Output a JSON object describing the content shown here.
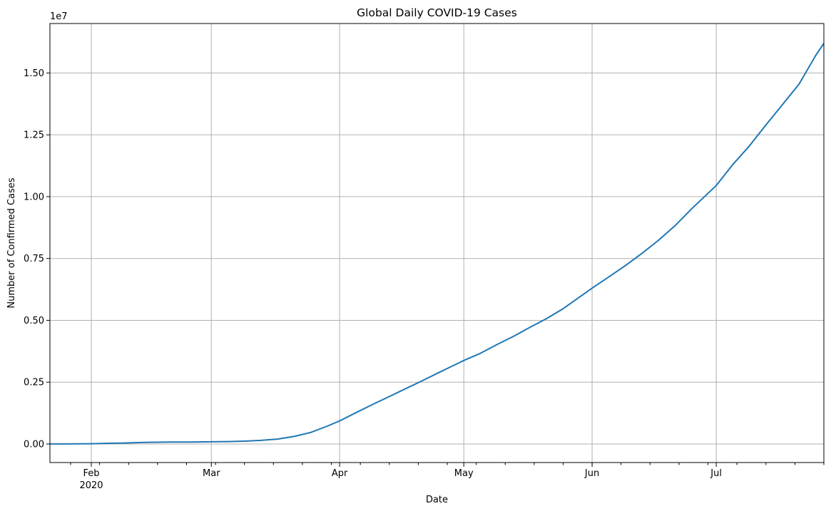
{
  "chart_data": {
    "type": "line",
    "title": "Global Daily COVID-19 Cases",
    "xlabel": "Date",
    "ylabel": "Number of Confirmed Cases",
    "y_offset_label": "1e7",
    "y_multiplier": 10000000,
    "ylim": [
      -0.075,
      1.7
    ],
    "xlim": [
      "2020-01-22",
      "2020-07-27"
    ],
    "grid": true,
    "line_color": "#1f77b4",
    "x_ticks": [
      {
        "date": "2020-02-01",
        "label": "Feb",
        "sublabel": "2020"
      },
      {
        "date": "2020-03-01",
        "label": "Mar",
        "sublabel": ""
      },
      {
        "date": "2020-04-01",
        "label": "Apr",
        "sublabel": ""
      },
      {
        "date": "2020-05-01",
        "label": "May",
        "sublabel": ""
      },
      {
        "date": "2020-06-01",
        "label": "Jun",
        "sublabel": ""
      },
      {
        "date": "2020-07-01",
        "label": "Jul",
        "sublabel": ""
      }
    ],
    "y_ticks": [
      {
        "value": 0.0,
        "label": "0.00"
      },
      {
        "value": 0.25,
        "label": "0.25"
      },
      {
        "value": 0.5,
        "label": "0.50"
      },
      {
        "value": 0.75,
        "label": "0.75"
      },
      {
        "value": 1.0,
        "label": "1.00"
      },
      {
        "value": 1.25,
        "label": "1.25"
      },
      {
        "value": 1.5,
        "label": "1.50"
      }
    ],
    "series": [
      {
        "points": [
          [
            "2020-01-22",
            0.0001
          ],
          [
            "2020-01-26",
            0.0002
          ],
          [
            "2020-02-01",
            0.0012
          ],
          [
            "2020-02-05",
            0.0028
          ],
          [
            "2020-02-09",
            0.004
          ],
          [
            "2020-02-13",
            0.006
          ],
          [
            "2020-02-15",
            0.0069
          ],
          [
            "2020-02-20",
            0.0076
          ],
          [
            "2020-02-25",
            0.0081
          ],
          [
            "2020-03-01",
            0.0088
          ],
          [
            "2020-03-05",
            0.0098
          ],
          [
            "2020-03-09",
            0.0114
          ],
          [
            "2020-03-13",
            0.0145
          ],
          [
            "2020-03-17",
            0.0198
          ],
          [
            "2020-03-21",
            0.0305
          ],
          [
            "2020-03-25",
            0.0467
          ],
          [
            "2020-03-29",
            0.0721
          ],
          [
            "2020-04-01",
            0.0932
          ],
          [
            "2020-04-05",
            0.1272
          ],
          [
            "2020-04-09",
            0.1602
          ],
          [
            "2020-04-13",
            0.1919
          ],
          [
            "2020-04-17",
            0.224
          ],
          [
            "2020-04-21",
            0.256
          ],
          [
            "2020-04-25",
            0.289
          ],
          [
            "2020-05-01",
            0.3375
          ],
          [
            "2020-05-05",
            0.3665
          ],
          [
            "2020-05-09",
            0.402
          ],
          [
            "2020-05-13",
            0.435
          ],
          [
            "2020-05-17",
            0.472
          ],
          [
            "2020-05-21",
            0.507
          ],
          [
            "2020-05-25",
            0.547
          ],
          [
            "2020-06-01",
            0.63
          ],
          [
            "2020-06-05",
            0.675
          ],
          [
            "2020-06-09",
            0.721
          ],
          [
            "2020-06-13",
            0.77
          ],
          [
            "2020-06-17",
            0.823
          ],
          [
            "2020-06-21",
            0.882
          ],
          [
            "2020-06-25",
            0.95
          ],
          [
            "2020-07-01",
            1.045
          ],
          [
            "2020-07-05",
            1.13
          ],
          [
            "2020-07-09",
            1.205
          ],
          [
            "2020-07-13",
            1.29
          ],
          [
            "2020-07-17",
            1.372
          ],
          [
            "2020-07-21",
            1.455
          ],
          [
            "2020-07-25",
            1.57
          ],
          [
            "2020-07-27",
            1.62
          ]
        ]
      }
    ]
  }
}
